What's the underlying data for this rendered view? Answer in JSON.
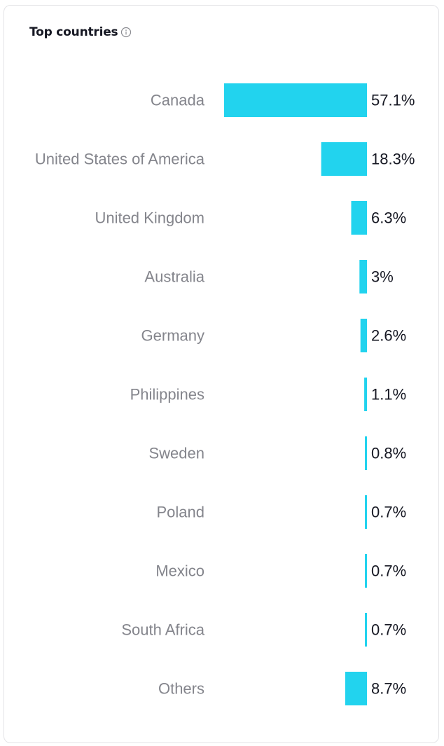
{
  "card": {
    "title": "Top countries",
    "info_icon": "info-circle-icon"
  },
  "colors": {
    "bar": "#22d3ee",
    "label": "#84858c",
    "value": "#161823",
    "border": "#e3e3e6"
  },
  "chart_data": {
    "type": "bar",
    "orientation": "horizontal",
    "title": "Top countries",
    "categories": [
      "Canada",
      "United States of America",
      "United Kingdom",
      "Australia",
      "Germany",
      "Philippines",
      "Sweden",
      "Poland",
      "Mexico",
      "South Africa",
      "Others"
    ],
    "values": [
      57.1,
      18.3,
      6.3,
      3,
      2.6,
      1.1,
      0.8,
      0.7,
      0.7,
      0.7,
      8.7
    ],
    "value_labels": [
      "57.1%",
      "18.3%",
      "6.3%",
      "3%",
      "2.6%",
      "1.1%",
      "0.8%",
      "0.7%",
      "0.7%",
      "0.7%",
      "8.7%"
    ],
    "unit": "%",
    "xlim": [
      0,
      57.1
    ],
    "grid": false,
    "legend": "none"
  }
}
